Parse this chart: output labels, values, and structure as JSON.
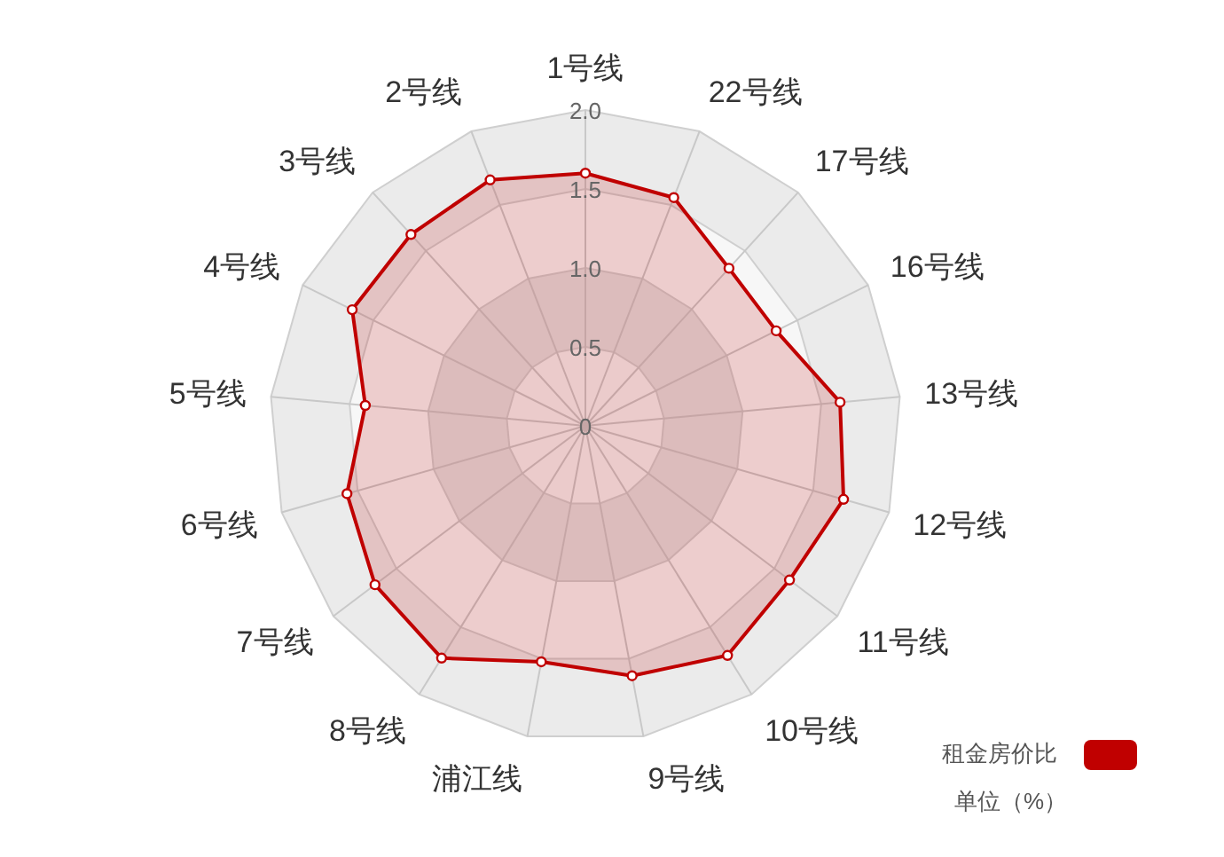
{
  "chart_data": {
    "type": "radar",
    "categories": [
      "1号线",
      "22号线",
      "17号线",
      "16号线",
      "13号线",
      "12号线",
      "11号线",
      "10号线",
      "9号线",
      "浦江线",
      "8号线",
      "7号线",
      "6号线",
      "5号线",
      "4号线",
      "3号线",
      "2号线"
    ],
    "series": [
      {
        "name": "租金房价比",
        "color": "#c00000",
        "values": [
          1.6,
          1.55,
          1.35,
          1.35,
          1.62,
          1.7,
          1.62,
          1.71,
          1.61,
          1.52,
          1.73,
          1.67,
          1.57,
          1.4,
          1.65,
          1.64,
          1.67
        ]
      }
    ],
    "ylim": [
      0,
      2
    ],
    "yticks": [
      0,
      0.5,
      {
        "value": 1,
        "label": "1.0"
      },
      1.5,
      {
        "value": 2,
        "label": "2.0"
      }
    ],
    "grid": true,
    "legend": "bottom right",
    "marker": "circle",
    "annotations": [
      "单位（%）"
    ]
  }
}
